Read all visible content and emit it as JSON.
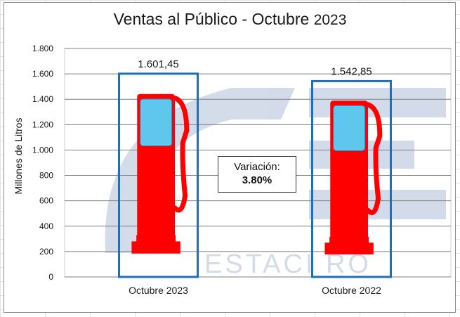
{
  "chart_data": {
    "type": "bar",
    "title": "Ventas al Público - Octubre",
    "title_year": "2023",
    "ylabel": "Millones de Litros",
    "xlabel": "",
    "ylim": [
      0,
      1800
    ],
    "y_ticks": [
      0,
      200,
      400,
      600,
      800,
      1000,
      1200,
      1400,
      1600,
      1800
    ],
    "y_tick_labels": [
      "0",
      "200",
      "400",
      "600",
      "800",
      "1.000",
      "1.200",
      "1.400",
      "1.600",
      "1.800"
    ],
    "grid": true,
    "categories": [
      "Octubre 2023",
      "Octubre 2022"
    ],
    "values": [
      1601.45,
      1542.85
    ],
    "value_labels": [
      "1.601,45",
      "1.542,85"
    ],
    "bar_style": "fuel-pump pictogram",
    "annotation": {
      "label": "Variación:",
      "value": "3.80%"
    },
    "watermark_text": "ESTACI RO"
  },
  "colors": {
    "pump_red": "#ff0000",
    "screen_blue": "#5fc7ee",
    "bar_outline": "#1f6fbf",
    "grid": "#7f7f7f",
    "watermark": "#cfd8e8"
  }
}
